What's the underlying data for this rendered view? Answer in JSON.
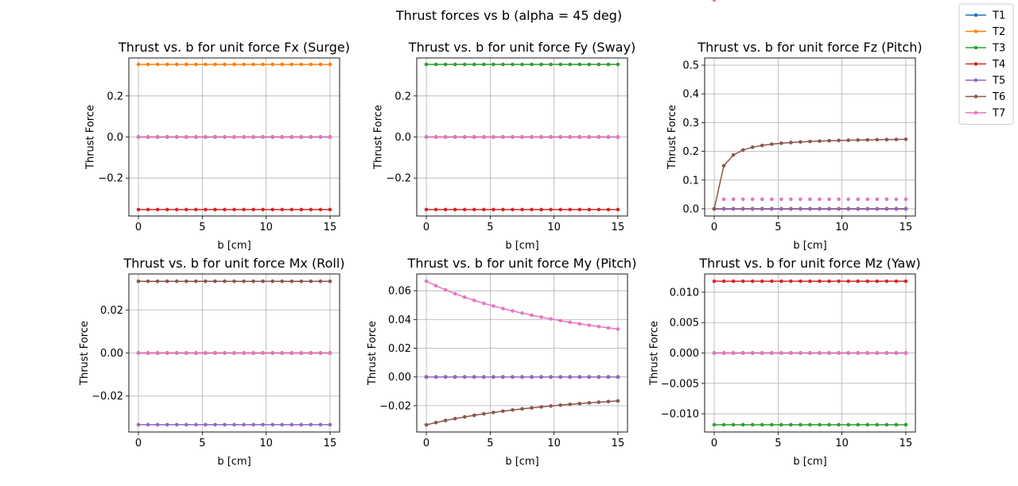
{
  "figure": {
    "suptitle": "Thrust forces vs b (alpha = 45 deg)"
  },
  "legend": {
    "placement": "top-right",
    "entries": [
      {
        "name": "T1",
        "color": "#1f77b4"
      },
      {
        "name": "T2",
        "color": "#ff7f0e"
      },
      {
        "name": "T3",
        "color": "#2ca02c"
      },
      {
        "name": "T4",
        "color": "#d62728"
      },
      {
        "name": "T5",
        "color": "#9467bd"
      },
      {
        "name": "T6",
        "color": "#8c564b"
      },
      {
        "name": "T7",
        "color": "#e377c2"
      }
    ]
  },
  "chart_data": [
    {
      "type": "line",
      "title": "Thrust vs. b for unit force Fx (Surge)",
      "xlabel": "b [cm]",
      "ylabel": "Thrust Force",
      "xlim": [
        -0.75,
        15.75
      ],
      "ylim": [
        -0.385,
        0.385
      ],
      "xticks": [
        0,
        5,
        10,
        15
      ],
      "xtick_labels": [
        "0",
        "5",
        "10",
        "15"
      ],
      "yticks": [
        -0.2,
        0,
        0.2
      ],
      "ytick_labels": [
        "−0.2",
        "0.0",
        "0.2"
      ],
      "grid": true,
      "x": {
        "start": 0,
        "stop": 15,
        "points": 21
      },
      "series": [
        {
          "name": "T1",
          "kind": "const",
          "value": 0
        },
        {
          "name": "T2",
          "kind": "const",
          "value": 0.3536
        },
        {
          "name": "T3",
          "kind": "const",
          "value": 0
        },
        {
          "name": "T4",
          "kind": "const",
          "value": -0.3536
        },
        {
          "name": "T5",
          "kind": "const",
          "value": 0
        },
        {
          "name": "T6",
          "kind": "const",
          "value": 0
        },
        {
          "name": "T7",
          "kind": "const",
          "value": 0
        }
      ]
    },
    {
      "type": "line",
      "title": "Thrust vs. b for unit force Fy (Sway)",
      "xlabel": "b [cm]",
      "ylabel": "Thrust Force",
      "xlim": [
        -0.75,
        15.75
      ],
      "ylim": [
        -0.385,
        0.385
      ],
      "xticks": [
        0,
        5,
        10,
        15
      ],
      "xtick_labels": [
        "0",
        "5",
        "10",
        "15"
      ],
      "yticks": [
        -0.2,
        0,
        0.2
      ],
      "ytick_labels": [
        "−0.2",
        "0.0",
        "0.2"
      ],
      "grid": true,
      "x": {
        "start": 0,
        "stop": 15,
        "points": 21
      },
      "series": [
        {
          "name": "T1",
          "kind": "const",
          "value": 0
        },
        {
          "name": "T2",
          "kind": "const",
          "value": 0
        },
        {
          "name": "T3",
          "kind": "const",
          "value": 0.3536
        },
        {
          "name": "T4",
          "kind": "const",
          "value": -0.3536
        },
        {
          "name": "T5",
          "kind": "const",
          "value": 0
        },
        {
          "name": "T6",
          "kind": "const",
          "value": 0
        },
        {
          "name": "T7",
          "kind": "const",
          "value": 0
        }
      ]
    },
    {
      "type": "line",
      "title": "Thrust vs. b for unit force Fz (Pitch)",
      "xlabel": "b [cm]",
      "ylabel": "Thrust Force",
      "xlim": [
        -0.75,
        15.75
      ],
      "ylim": [
        -0.025,
        0.525
      ],
      "xticks": [
        0,
        5,
        10,
        15
      ],
      "xtick_labels": [
        "0",
        "5",
        "10",
        "15"
      ],
      "yticks": [
        0,
        0.1,
        0.2,
        0.3,
        0.4,
        0.5
      ],
      "ytick_labels": [
        "0.0",
        "0.1",
        "0.2",
        "0.3",
        "0.4",
        "0.5"
      ],
      "grid": true,
      "x": {
        "start": 0,
        "stop": 15,
        "points": 21
      },
      "series": [
        {
          "name": "T1",
          "kind": "const",
          "value": 0
        },
        {
          "name": "T2",
          "kind": "const",
          "value": 0
        },
        {
          "name": "T3",
          "kind": "const",
          "value": 0
        },
        {
          "name": "T4",
          "kind": "const",
          "value": 0
        },
        {
          "name": "T5",
          "kind": "const",
          "value": 0
        },
        {
          "name": "T6",
          "kind": "ratio",
          "num": 0,
          "numk": 0.5,
          "den": 1,
          "denk": 15,
          "scale": 7.5
        },
        {
          "name": "T7",
          "kind": "ratio",
          "num": 0,
          "numk": 0.5,
          "den": 0,
          "denk": 15,
          "scale": 1
        }
      ]
    },
    {
      "type": "line",
      "title": "Thrust vs. b for unit force Mx (Roll)",
      "xlabel": "b [cm]",
      "ylabel": "Thrust Force",
      "xlim": [
        -0.75,
        15.75
      ],
      "ylim": [
        -0.0367,
        0.0367
      ],
      "xticks": [
        0,
        5,
        10,
        15
      ],
      "xtick_labels": [
        "0",
        "5",
        "10",
        "15"
      ],
      "yticks": [
        -0.02,
        0,
        0.02
      ],
      "ytick_labels": [
        "−0.02",
        "0.00",
        "0.02"
      ],
      "grid": true,
      "x": {
        "start": 0,
        "stop": 15,
        "points": 21
      },
      "series": [
        {
          "name": "T1",
          "kind": "const",
          "value": 0
        },
        {
          "name": "T2",
          "kind": "const",
          "value": 0
        },
        {
          "name": "T3",
          "kind": "const",
          "value": 0
        },
        {
          "name": "T4",
          "kind": "const",
          "value": 0
        },
        {
          "name": "T5",
          "kind": "const",
          "value": -0.0333
        },
        {
          "name": "T6",
          "kind": "const",
          "value": 0.0333
        },
        {
          "name": "T7",
          "kind": "const",
          "value": 0
        }
      ]
    },
    {
      "type": "line",
      "title": "Thrust vs. b for unit force My (Pitch)",
      "xlabel": "b [cm]",
      "ylabel": "Thrust Force",
      "xlim": [
        -0.75,
        15.75
      ],
      "ylim": [
        -0.0383,
        0.0717
      ],
      "xticks": [
        0,
        5,
        10,
        15
      ],
      "xtick_labels": [
        "0",
        "5",
        "10",
        "15"
      ],
      "yticks": [
        -0.02,
        0,
        0.02,
        0.04,
        0.06
      ],
      "ytick_labels": [
        "−0.02",
        "0.00",
        "0.02",
        "0.04",
        "0.06"
      ],
      "grid": true,
      "x": {
        "start": 0,
        "stop": 15,
        "points": 21
      },
      "series": [
        {
          "name": "T1",
          "kind": "const",
          "value": 0
        },
        {
          "name": "T2",
          "kind": "const",
          "value": 0
        },
        {
          "name": "T3",
          "kind": "const",
          "value": 0
        },
        {
          "name": "T4",
          "kind": "const",
          "value": 0
        },
        {
          "name": "T5",
          "kind": "const",
          "value": 0
        },
        {
          "name": "T6",
          "kind": "ratio",
          "num": -1,
          "numk": 0,
          "den": 30,
          "denk": 2
        },
        {
          "name": "T7",
          "kind": "ratio",
          "num": 2,
          "numk": 0,
          "den": 30,
          "denk": 2
        }
      ]
    },
    {
      "type": "line",
      "title": "Thrust vs. b for unit force Mz (Yaw)",
      "xlabel": "b [cm]",
      "ylabel": "Thrust Force",
      "xlim": [
        -0.75,
        15.75
      ],
      "ylim": [
        -0.013,
        0.013
      ],
      "xticks": [
        0,
        5,
        10,
        15
      ],
      "xtick_labels": [
        "0",
        "5",
        "10",
        "15"
      ],
      "yticks": [
        -0.01,
        -0.005,
        0,
        0.005,
        0.01
      ],
      "ytick_labels": [
        "−0.010",
        "−0.005",
        "0.000",
        "0.005",
        "0.010"
      ],
      "grid": true,
      "x": {
        "start": 0,
        "stop": 15,
        "points": 21
      },
      "series": [
        {
          "name": "T1",
          "kind": "const",
          "value": 0
        },
        {
          "name": "T2",
          "kind": "const",
          "value": 0
        },
        {
          "name": "T3",
          "kind": "const",
          "value": -0.0118
        },
        {
          "name": "T4",
          "kind": "const",
          "value": 0.0118
        },
        {
          "name": "T5",
          "kind": "const",
          "value": 0
        },
        {
          "name": "T6",
          "kind": "const",
          "value": 0
        },
        {
          "name": "T7",
          "kind": "const",
          "value": 0
        }
      ]
    }
  ]
}
